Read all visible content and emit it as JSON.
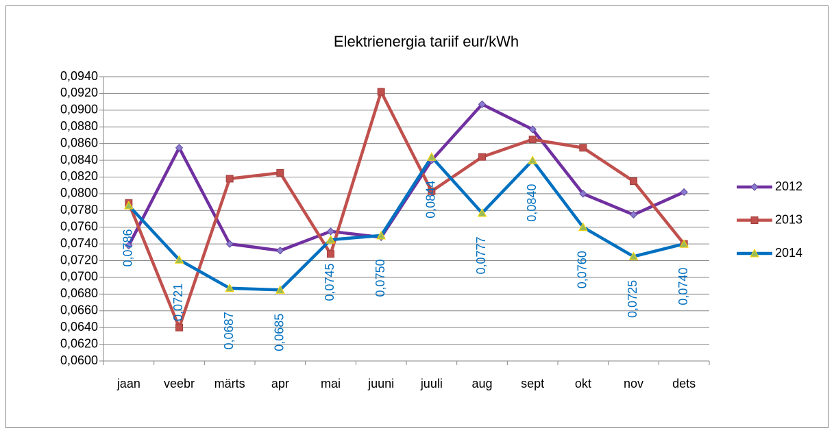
{
  "chart_data": {
    "type": "line",
    "title": "Elektrienergia tariif eur/kWh",
    "categories": [
      "jaan",
      "veebr",
      "märts",
      "apr",
      "mai",
      "juuni",
      "juuli",
      "aug",
      "sept",
      "okt",
      "nov",
      "dets"
    ],
    "series": [
      {
        "name": "2012",
        "color": "#7030a0",
        "values": [
          0.0738,
          0.0855,
          0.074,
          0.0732,
          0.0755,
          0.0748,
          0.084,
          0.0907,
          0.0877,
          0.08,
          0.0775,
          0.0802
        ]
      },
      {
        "name": "2013",
        "color": "#c0504d",
        "values": [
          0.0789,
          0.064,
          0.0818,
          0.0825,
          0.0728,
          0.0922,
          0.0803,
          0.0844,
          0.0865,
          0.0855,
          0.0815,
          0.074
        ]
      },
      {
        "name": "2014",
        "color": "#0070c0",
        "values": [
          0.0786,
          0.0721,
          0.0687,
          0.0685,
          0.0745,
          0.075,
          0.0844,
          0.0777,
          0.084,
          0.076,
          0.0725,
          0.074
        ],
        "value_labels": [
          "0,0786",
          "0,0721",
          "0,0687",
          "0,0685",
          "0,0745",
          "0,0750",
          "0,0844",
          "0,0777",
          "0,0840",
          "0,0760",
          "0,0725",
          "0,0740"
        ]
      }
    ],
    "ylim": [
      0.06,
      0.094
    ],
    "yticks": [
      {
        "value": 0.06,
        "label": "0,0600"
      },
      {
        "value": 0.062,
        "label": "0,0620"
      },
      {
        "value": 0.064,
        "label": "0,0640"
      },
      {
        "value": 0.066,
        "label": "0,0660"
      },
      {
        "value": 0.068,
        "label": "0,0680"
      },
      {
        "value": 0.07,
        "label": "0,0700"
      },
      {
        "value": 0.072,
        "label": "0,0720"
      },
      {
        "value": 0.074,
        "label": "0,0740"
      },
      {
        "value": 0.076,
        "label": "0,0760"
      },
      {
        "value": 0.078,
        "label": "0,0780"
      },
      {
        "value": 0.08,
        "label": "0,0800"
      },
      {
        "value": 0.082,
        "label": "0,0820"
      },
      {
        "value": 0.084,
        "label": "0,0840"
      },
      {
        "value": 0.086,
        "label": "0,0860"
      },
      {
        "value": 0.088,
        "label": "0,0880"
      },
      {
        "value": 0.09,
        "label": "0,0900"
      },
      {
        "value": 0.092,
        "label": "0,0920"
      },
      {
        "value": 0.094,
        "label": "0,0940"
      }
    ],
    "grid": true,
    "legend": "right"
  }
}
